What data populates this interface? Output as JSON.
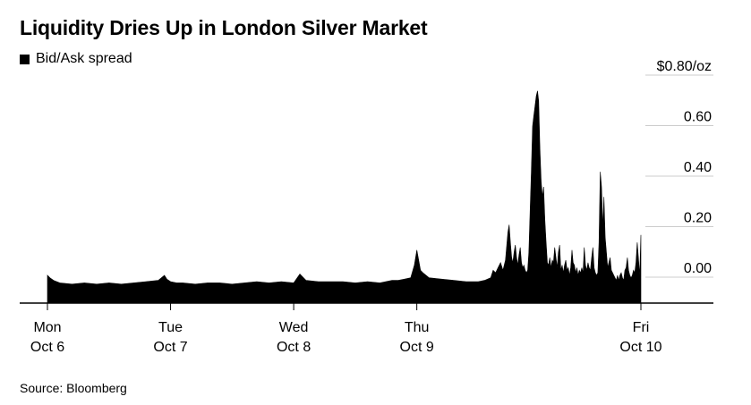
{
  "title": "Liquidity Dries Up in London Silver Market",
  "legend": {
    "label": "Bid/Ask spread",
    "color": "#000000"
  },
  "source": "Source: Bloomberg",
  "chart_data": {
    "type": "area",
    "title": "Liquidity Dries Up in London Silver Market",
    "series": [
      {
        "name": "Bid/Ask spread",
        "color": "#000000",
        "x": [
          0.0,
          0.02,
          0.05,
          0.1,
          0.2,
          0.3,
          0.4,
          0.5,
          0.6,
          0.7,
          0.8,
          0.9,
          0.95,
          0.97,
          1.0,
          1.05,
          1.1,
          1.2,
          1.3,
          1.4,
          1.5,
          1.6,
          1.7,
          1.8,
          1.9,
          2.0,
          2.05,
          2.1,
          2.2,
          2.3,
          2.4,
          2.5,
          2.6,
          2.7,
          2.8,
          2.85,
          2.9,
          2.95,
          2.98,
          3.0,
          3.03,
          3.05,
          3.1,
          3.2,
          3.3,
          3.4,
          3.5,
          3.55,
          3.6,
          3.62,
          3.64,
          3.66,
          3.68,
          3.7,
          3.72,
          3.74,
          3.75,
          3.76,
          3.77,
          3.78,
          3.79,
          3.8,
          3.81,
          3.82,
          3.83,
          3.84,
          3.85,
          3.86,
          3.87,
          3.88,
          3.89,
          3.9,
          3.91,
          3.92,
          3.93,
          3.94,
          3.95,
          3.96,
          3.97,
          3.98,
          3.99,
          4.0,
          4.01,
          4.02,
          4.03,
          4.04,
          4.05,
          4.06,
          4.07,
          4.08,
          4.09,
          4.1,
          4.11,
          4.12,
          4.13,
          4.14,
          4.15,
          4.16,
          4.17,
          4.18,
          4.19,
          4.2,
          4.21,
          4.22,
          4.23,
          4.24,
          4.25,
          4.26,
          4.27,
          4.28,
          4.29,
          4.3,
          4.31,
          4.32,
          4.33,
          4.34,
          4.35,
          4.36,
          4.37,
          4.38,
          4.39,
          4.4,
          4.41,
          4.42,
          4.43,
          4.44,
          4.45,
          4.46,
          4.47,
          4.48,
          4.49,
          4.5,
          4.51,
          4.52,
          4.53,
          4.54,
          4.55,
          4.56,
          4.57,
          4.58,
          4.59,
          4.6,
          4.61,
          4.62,
          4.63,
          4.64,
          4.65,
          4.66,
          4.67,
          4.68,
          4.69,
          4.7,
          4.71,
          4.72,
          4.73,
          4.74,
          4.75,
          4.76,
          4.77,
          4.78,
          4.79,
          4.8,
          4.81,
          4.82
        ],
        "values": [
          0.05,
          0.04,
          0.03,
          0.02,
          0.015,
          0.02,
          0.015,
          0.02,
          0.015,
          0.02,
          0.025,
          0.03,
          0.05,
          0.035,
          0.025,
          0.02,
          0.02,
          0.015,
          0.02,
          0.02,
          0.015,
          0.02,
          0.025,
          0.02,
          0.025,
          0.02,
          0.055,
          0.03,
          0.025,
          0.025,
          0.025,
          0.02,
          0.025,
          0.02,
          0.03,
          0.03,
          0.035,
          0.04,
          0.09,
          0.15,
          0.07,
          0.06,
          0.04,
          0.035,
          0.03,
          0.025,
          0.025,
          0.03,
          0.04,
          0.07,
          0.06,
          0.08,
          0.1,
          0.07,
          0.11,
          0.22,
          0.25,
          0.18,
          0.12,
          0.1,
          0.14,
          0.17,
          0.12,
          0.09,
          0.13,
          0.16,
          0.1,
          0.08,
          0.09,
          0.07,
          0.06,
          0.07,
          0.14,
          0.3,
          0.46,
          0.64,
          0.68,
          0.72,
          0.76,
          0.78,
          0.74,
          0.55,
          0.42,
          0.36,
          0.4,
          0.27,
          0.18,
          0.1,
          0.09,
          0.12,
          0.08,
          0.11,
          0.1,
          0.16,
          0.12,
          0.08,
          0.14,
          0.17,
          0.07,
          0.09,
          0.06,
          0.09,
          0.11,
          0.07,
          0.08,
          0.05,
          0.08,
          0.15,
          0.1,
          0.09,
          0.06,
          0.08,
          0.05,
          0.07,
          0.06,
          0.08,
          0.06,
          0.16,
          0.09,
          0.07,
          0.1,
          0.08,
          0.07,
          0.12,
          0.16,
          0.08,
          0.06,
          0.05,
          0.06,
          0.18,
          0.46,
          0.4,
          0.24,
          0.36,
          0.2,
          0.14,
          0.08,
          0.1,
          0.12,
          0.07,
          0.06,
          0.05,
          0.04,
          0.03,
          0.05,
          0.03,
          0.05,
          0.06,
          0.04,
          0.03,
          0.07,
          0.08,
          0.12,
          0.07,
          0.05,
          0.04,
          0.05,
          0.07,
          0.06,
          0.1,
          0.18,
          0.12,
          0.05,
          0.21
        ]
      }
    ],
    "x_ticks": [
      {
        "value": 0,
        "day": "Mon",
        "date": "Oct 6"
      },
      {
        "value": 1,
        "day": "Tue",
        "date": "Oct 7"
      },
      {
        "value": 2,
        "day": "Wed",
        "date": "Oct 8"
      },
      {
        "value": 3,
        "day": "Thu",
        "date": "Oct 9"
      },
      {
        "value": 4.82,
        "day": "Fri",
        "date": "Oct 10"
      }
    ],
    "xlim": [
      0,
      4.82
    ],
    "ylim": [
      -0.06,
      0.8
    ],
    "y_ticks": [
      {
        "value": 0.0,
        "label": "0.00"
      },
      {
        "value": 0.2,
        "label": "0.20"
      },
      {
        "value": 0.4,
        "label": "0.40"
      },
      {
        "value": 0.6,
        "label": "0.60"
      },
      {
        "value": 0.8,
        "label": "$0.80/oz"
      }
    ],
    "grid": true,
    "legend_position": "top-left"
  }
}
